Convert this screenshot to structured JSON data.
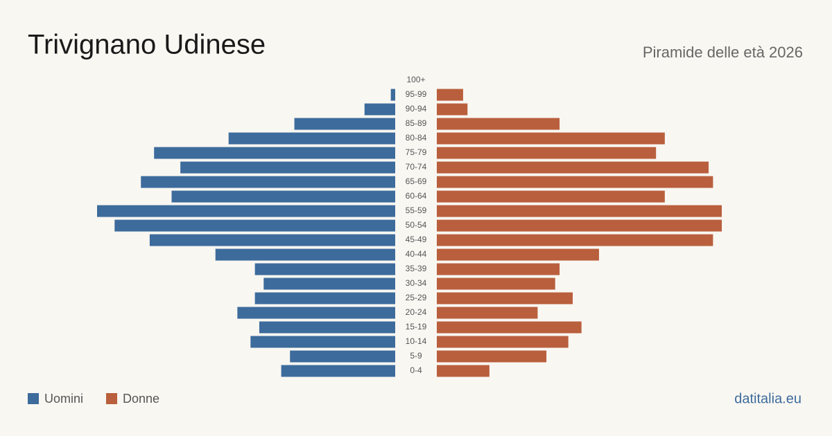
{
  "chart_data": {
    "type": "pyramid",
    "title": "Trivignano Udinese",
    "subtitle": "Piramide delle età 2026",
    "source": "datitalia.eu",
    "categories": [
      "100+",
      "95-99",
      "90-94",
      "85-89",
      "80-84",
      "75-79",
      "70-74",
      "65-69",
      "60-64",
      "55-59",
      "50-54",
      "45-49",
      "40-44",
      "35-39",
      "30-34",
      "25-29",
      "20-24",
      "15-19",
      "10-14",
      "5-9",
      "0-4"
    ],
    "series": [
      {
        "name": "Uomini",
        "color": "#3d6b9c",
        "values": [
          0,
          1,
          7,
          23,
          38,
          55,
          49,
          58,
          51,
          68,
          64,
          56,
          41,
          32,
          30,
          32,
          36,
          31,
          33,
          24,
          26
        ]
      },
      {
        "name": "Donne",
        "color": "#b95f3d",
        "values": [
          0,
          6,
          7,
          28,
          52,
          50,
          62,
          63,
          52,
          65,
          65,
          63,
          37,
          28,
          27,
          31,
          23,
          33,
          30,
          25,
          12
        ]
      }
    ]
  }
}
